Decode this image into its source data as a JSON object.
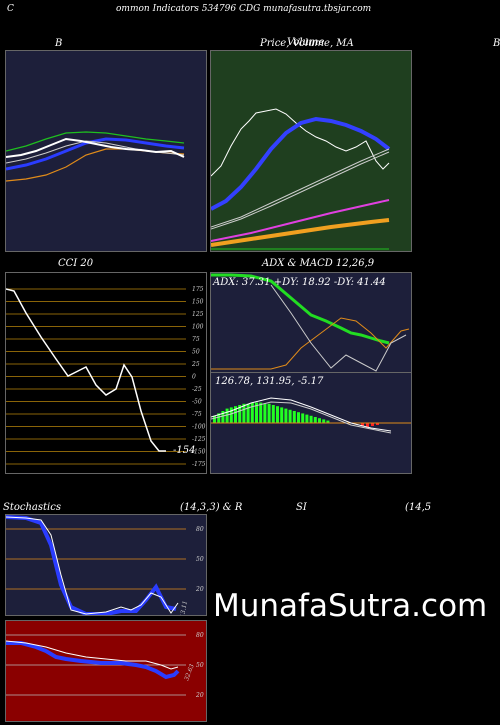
{
  "header": {
    "c": "C",
    "title": "ommon  Indicators 534796  CDG munafasutra.tbsjar.com"
  },
  "bb": {
    "title": "B"
  },
  "price": {
    "title": "Price,  Volume,  MA",
    "overlay": "Volume"
  },
  "right_edge": {
    "title": "B"
  },
  "cci": {
    "title": "CCI 20",
    "value_label": "-154",
    "ticks": [
      "175",
      "150",
      "125",
      "100",
      "75",
      "50",
      "25",
      "0",
      "-25",
      "-50",
      "-75",
      "-100",
      "-125",
      "-150",
      "-175"
    ]
  },
  "adx": {
    "title": "ADX  & MACD 12,26,9",
    "values": "ADX: 37.31  +DY: 18.92  -DY: 41.44"
  },
  "macd": {
    "values": "126.78,  131.95,  -5.17"
  },
  "stoch": {
    "title_left": "Stochastics",
    "title_mid": "(14,3,3) & R",
    "title_right": "SI",
    "title_far": "(14,5",
    "ticks": [
      "80",
      "50",
      "20"
    ],
    "value": "13.11"
  },
  "rsi": {
    "ticks": [
      "80",
      "50",
      "20"
    ],
    "value": "32.63"
  },
  "watermark": {
    "text": "MunafaSutra.com"
  }
}
